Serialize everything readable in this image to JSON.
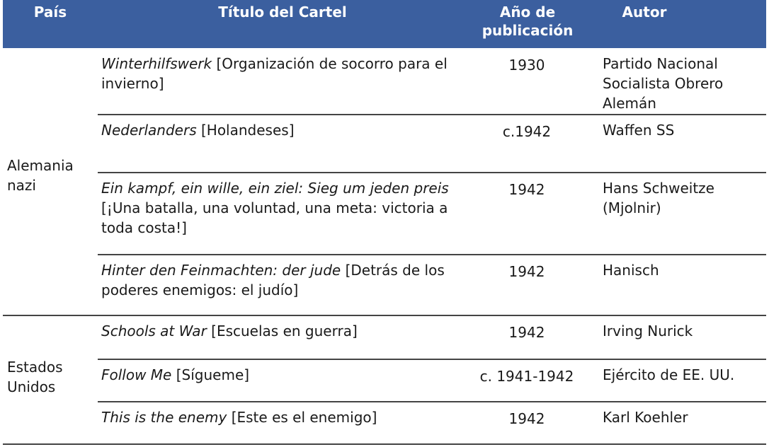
{
  "header": {
    "country": "País",
    "title": "Título del Cartel",
    "year": "Año de publicación",
    "author": "Autor"
  },
  "groups": [
    {
      "country": "Alemania nazi",
      "rows": [
        {
          "title_orig": "Winterhilfswerk",
          "title_trans": " [Organización de socorro para el invierno]",
          "year": "1930",
          "author": "Partido Nacional Socialista Obrero Alemán"
        },
        {
          "title_orig": "Nederlanders",
          "title_trans": " [Holandeses]",
          "year": "c.1942",
          "author": "Waffen SS"
        },
        {
          "title_orig": "Ein kampf, ein wille, ein ziel: Sieg um jeden preis",
          "title_trans": " [¡Una batalla, una voluntad, una meta: victoria a toda costa!]",
          "year": "1942",
          "author": "Hans Schweitze (Mjolnir)"
        },
        {
          "title_orig": "Hinter den Feinmachten: der jude",
          "title_trans": " [Detrás de los poderes enemigos: el judío]",
          "year": "1942",
          "author": "Hanisch"
        }
      ]
    },
    {
      "country": "Estados Unidos",
      "rows": [
        {
          "title_orig": "Schools at War",
          "title_trans": " [Escuelas en guerra]",
          "year": "1942",
          "author": "Irving Nurick"
        },
        {
          "title_orig": "Follow Me",
          "title_trans": " [Sígueme]",
          "year": "c. 1941-1942",
          "author": "Ejército de EE. UU."
        },
        {
          "title_orig": "This is the enemy",
          "title_trans": " [Este es el enemigo]",
          "year": "1942",
          "author": "Karl Koehler"
        }
      ]
    }
  ]
}
